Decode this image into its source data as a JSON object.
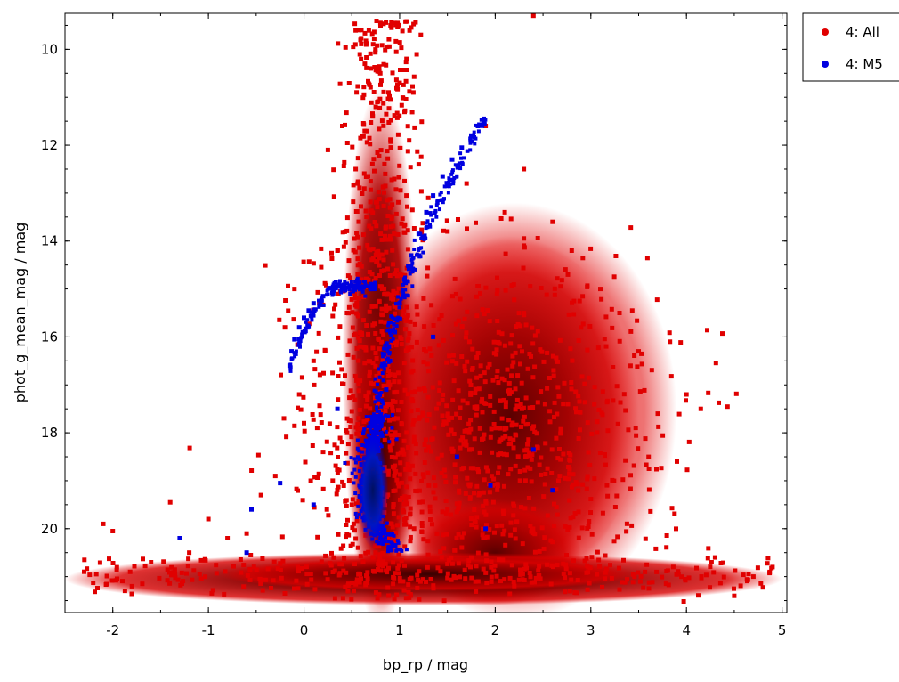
{
  "chart_data": {
    "type": "scatter",
    "xlabel": "bp_rp / mag",
    "ylabel": "phot_g_mean_mag / mag",
    "xlim": [
      -2.5,
      5.05
    ],
    "ylim": [
      21.75,
      9.25
    ],
    "y_inverted": true,
    "x_ticks": [
      {
        "value": -2,
        "label": "-2"
      },
      {
        "value": -1,
        "label": "-1"
      },
      {
        "value": 0,
        "label": "0"
      },
      {
        "value": 1,
        "label": "1"
      },
      {
        "value": 2,
        "label": "2"
      },
      {
        "value": 3,
        "label": "3"
      },
      {
        "value": 4,
        "label": "4"
      },
      {
        "value": 5,
        "label": "5"
      }
    ],
    "y_ticks": [
      {
        "value": 10,
        "label": "10"
      },
      {
        "value": 12,
        "label": "12"
      },
      {
        "value": 14,
        "label": "14"
      },
      {
        "value": 16,
        "label": "16"
      },
      {
        "value": 18,
        "label": "18"
      },
      {
        "value": 20,
        "label": "20"
      }
    ],
    "legend_position": "outside-top-right",
    "grid": false,
    "series": [
      {
        "name": "4: All",
        "color": "#e00000",
        "dense_color": "#400000",
        "marker": "square",
        "description_regions": {
          "vertical_band": {
            "x_range": [
              0.5,
              1.1
            ],
            "y_range": [
              9.4,
              21.5
            ]
          },
          "broad_blob": {
            "x_range": [
              0.8,
              3.5
            ],
            "y_range": [
              13.5,
              21.0
            ],
            "densest_at": [
              2.0,
              20.5
            ]
          },
          "faint_strip": {
            "x_range": [
              -2.5,
              5.0
            ],
            "y_range": [
              20.6,
              21.5
            ]
          }
        },
        "points": [
          [
            -2.3,
            20.9
          ],
          [
            -2.1,
            19.9
          ],
          [
            -2.0,
            20.05
          ],
          [
            -1.8,
            21.2
          ],
          [
            -1.6,
            20.7
          ],
          [
            -1.4,
            19.45
          ],
          [
            -1.2,
            20.5
          ],
          [
            -1.0,
            19.8
          ],
          [
            -0.8,
            20.2
          ],
          [
            -0.6,
            20.1
          ],
          [
            -0.45,
            19.3
          ],
          [
            -0.3,
            18.9
          ],
          [
            -0.2,
            15.8
          ],
          [
            -0.1,
            15.0
          ],
          [
            -0.05,
            17.2
          ],
          [
            0.0,
            17.8
          ],
          [
            0.1,
            16.5
          ],
          [
            0.2,
            18.4
          ],
          [
            0.25,
            12.1
          ],
          [
            0.3,
            19.0
          ],
          [
            0.35,
            14.2
          ],
          [
            0.4,
            11.6
          ],
          [
            0.45,
            15.5
          ],
          [
            0.5,
            19.5
          ],
          [
            0.55,
            10.9
          ],
          [
            0.6,
            9.6
          ],
          [
            0.65,
            9.9
          ],
          [
            0.7,
            10.4
          ],
          [
            0.75,
            11.2
          ],
          [
            0.8,
            9.5
          ],
          [
            0.85,
            12.6
          ],
          [
            0.9,
            13.9
          ],
          [
            0.95,
            16.8
          ],
          [
            1.0,
            10.7
          ],
          [
            1.1,
            11.9
          ],
          [
            1.2,
            12.4
          ],
          [
            1.3,
            13.1
          ],
          [
            1.5,
            13.8
          ],
          [
            1.7,
            12.8
          ],
          [
            1.9,
            11.6
          ],
          [
            2.1,
            13.4
          ],
          [
            2.3,
            12.5
          ],
          [
            2.4,
            9.3
          ],
          [
            2.6,
            13.6
          ],
          [
            2.8,
            14.2
          ],
          [
            3.1,
            15.0
          ],
          [
            3.3,
            15.5
          ],
          [
            3.5,
            16.3
          ],
          [
            3.7,
            17.6
          ],
          [
            3.9,
            18.6
          ],
          [
            4.0,
            17.2
          ],
          [
            4.15,
            17.5
          ],
          [
            4.3,
            20.6
          ],
          [
            4.5,
            21.4
          ],
          [
            4.7,
            21.0
          ],
          [
            4.9,
            20.8
          ]
        ]
      },
      {
        "name": "4: M5",
        "color": "#0000e0",
        "marker": "square",
        "description_regions": {
          "red_giant_branch": {
            "x_range": [
              0.7,
              1.9
            ],
            "y_range": [
              11.4,
              18.5
            ]
          },
          "horizontal_branch": {
            "x_range": [
              -0.15,
              0.75
            ],
            "y_range": [
              14.8,
              16.8
            ]
          },
          "main_sequence_turnoff": {
            "x_range": [
              0.5,
              1.1
            ],
            "y_range": [
              18.0,
              20.5
            ]
          }
        },
        "points": [
          [
            1.88,
            11.45
          ],
          [
            1.82,
            11.6
          ],
          [
            1.75,
            11.8
          ],
          [
            1.65,
            12.05
          ],
          [
            1.55,
            12.3
          ],
          [
            1.45,
            12.65
          ],
          [
            1.35,
            13.05
          ],
          [
            1.28,
            13.4
          ],
          [
            1.2,
            13.85
          ],
          [
            1.12,
            14.3
          ],
          [
            1.05,
            14.8
          ],
          [
            1.0,
            15.3
          ],
          [
            0.95,
            15.9
          ],
          [
            0.9,
            16.5
          ],
          [
            0.86,
            17.1
          ],
          [
            0.82,
            17.7
          ],
          [
            0.77,
            18.2
          ],
          [
            0.72,
            18.6
          ],
          [
            0.68,
            19.0
          ],
          [
            0.65,
            19.4
          ],
          [
            0.66,
            19.8
          ],
          [
            0.7,
            20.1
          ],
          [
            0.78,
            20.3
          ],
          [
            0.9,
            20.45
          ],
          [
            0.7,
            14.9
          ],
          [
            0.6,
            14.95
          ],
          [
            0.5,
            14.95
          ],
          [
            0.4,
            15.0
          ],
          [
            0.3,
            15.05
          ],
          [
            0.2,
            15.15
          ],
          [
            0.1,
            15.3
          ],
          [
            0.05,
            15.45
          ],
          [
            0.0,
            15.6
          ],
          [
            -0.05,
            15.8
          ],
          [
            -0.1,
            16.05
          ],
          [
            -0.13,
            16.3
          ],
          [
            -0.15,
            16.6
          ],
          [
            -1.3,
            20.2
          ],
          [
            -0.55,
            19.6
          ],
          [
            -0.6,
            20.5
          ],
          [
            -0.25,
            19.05
          ],
          [
            0.1,
            19.5
          ],
          [
            1.35,
            16.0
          ],
          [
            1.6,
            18.5
          ],
          [
            1.9,
            20.0
          ],
          [
            2.4,
            18.35
          ],
          [
            2.6,
            19.2
          ],
          [
            1.95,
            19.1
          ],
          [
            0.35,
            17.5
          ]
        ]
      }
    ]
  }
}
